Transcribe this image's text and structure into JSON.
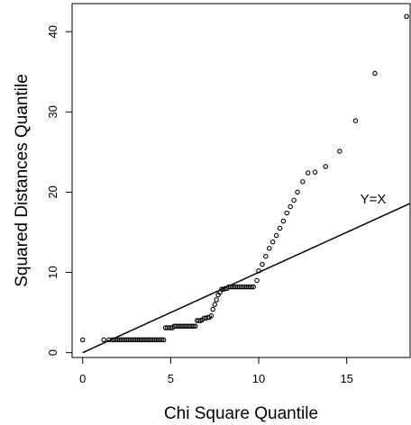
{
  "chart_data": {
    "type": "scatter",
    "title": "",
    "xlabel": "Chi Square Quantile",
    "ylabel": "Squared Distances Quantile",
    "xlim": [
      -0.6,
      18.6
    ],
    "ylim": [
      -0.6,
      43.5
    ],
    "xticks": [
      0,
      5,
      10,
      15
    ],
    "yticks": [
      0,
      10,
      20,
      30,
      40
    ],
    "grid": false,
    "series": [
      {
        "points": [
          [
            0.0,
            1.6
          ],
          [
            1.2,
            1.6
          ],
          [
            1.5,
            1.6
          ],
          [
            1.7,
            1.6
          ],
          [
            1.8,
            1.6
          ],
          [
            1.9,
            1.6
          ],
          [
            2.0,
            1.6
          ],
          [
            2.1,
            1.6
          ],
          [
            2.2,
            1.6
          ],
          [
            2.3,
            1.6
          ],
          [
            2.4,
            1.6
          ],
          [
            2.5,
            1.6
          ],
          [
            2.6,
            1.6
          ],
          [
            2.7,
            1.6
          ],
          [
            2.8,
            1.6
          ],
          [
            2.9,
            1.6
          ],
          [
            3.0,
            1.6
          ],
          [
            3.1,
            1.6
          ],
          [
            3.2,
            1.6
          ],
          [
            3.3,
            1.6
          ],
          [
            3.4,
            1.6
          ],
          [
            3.5,
            1.6
          ],
          [
            3.6,
            1.6
          ],
          [
            3.7,
            1.6
          ],
          [
            3.8,
            1.6
          ],
          [
            3.9,
            1.6
          ],
          [
            4.0,
            1.6
          ],
          [
            4.1,
            1.6
          ],
          [
            4.2,
            1.6
          ],
          [
            4.3,
            1.6
          ],
          [
            4.4,
            1.6
          ],
          [
            4.5,
            1.6
          ],
          [
            4.6,
            1.6
          ],
          [
            4.7,
            3.1
          ],
          [
            4.8,
            3.1
          ],
          [
            4.9,
            3.1
          ],
          [
            5.0,
            3.1
          ],
          [
            5.1,
            3.1
          ],
          [
            5.2,
            3.3
          ],
          [
            5.3,
            3.3
          ],
          [
            5.4,
            3.3
          ],
          [
            5.5,
            3.3
          ],
          [
            5.6,
            3.3
          ],
          [
            5.7,
            3.3
          ],
          [
            5.8,
            3.3
          ],
          [
            5.9,
            3.3
          ],
          [
            6.0,
            3.3
          ],
          [
            6.1,
            3.3
          ],
          [
            6.2,
            3.3
          ],
          [
            6.3,
            3.3
          ],
          [
            6.4,
            3.3
          ],
          [
            6.5,
            4.0
          ],
          [
            6.6,
            4.0
          ],
          [
            6.7,
            4.0
          ],
          [
            6.8,
            4.1
          ],
          [
            6.9,
            4.3
          ],
          [
            7.0,
            4.3
          ],
          [
            7.1,
            4.4
          ],
          [
            7.2,
            4.4
          ],
          [
            7.3,
            4.6
          ],
          [
            7.4,
            5.4
          ],
          [
            7.5,
            6.0
          ],
          [
            7.6,
            6.6
          ],
          [
            7.7,
            7.2
          ],
          [
            7.8,
            7.5
          ],
          [
            7.9,
            7.9
          ],
          [
            8.0,
            7.9
          ],
          [
            8.1,
            8.0
          ],
          [
            8.2,
            8.0
          ],
          [
            8.3,
            8.2
          ],
          [
            8.4,
            8.2
          ],
          [
            8.5,
            8.2
          ],
          [
            8.6,
            8.2
          ],
          [
            8.7,
            8.2
          ],
          [
            8.8,
            8.2
          ],
          [
            8.9,
            8.2
          ],
          [
            9.0,
            8.2
          ],
          [
            9.1,
            8.2
          ],
          [
            9.2,
            8.2
          ],
          [
            9.3,
            8.2
          ],
          [
            9.4,
            8.2
          ],
          [
            9.5,
            8.2
          ],
          [
            9.6,
            8.2
          ],
          [
            9.7,
            8.2
          ],
          [
            9.9,
            9.0
          ],
          [
            10.0,
            10.2
          ],
          [
            10.2,
            11.0
          ],
          [
            10.4,
            12.0
          ],
          [
            10.6,
            13.0
          ],
          [
            10.8,
            13.8
          ],
          [
            11.0,
            14.6
          ],
          [
            11.2,
            15.5
          ],
          [
            11.4,
            16.4
          ],
          [
            11.6,
            17.4
          ],
          [
            11.8,
            18.2
          ],
          [
            12.0,
            19.0
          ],
          [
            12.2,
            20.0
          ],
          [
            12.5,
            21.3
          ],
          [
            12.8,
            22.4
          ],
          [
            13.2,
            22.5
          ],
          [
            13.8,
            23.2
          ],
          [
            14.6,
            25.1
          ],
          [
            15.5,
            28.9
          ],
          [
            16.6,
            34.8
          ],
          [
            18.4,
            41.9
          ]
        ]
      }
    ],
    "reference_line": {
      "label": "Y=X",
      "slope": 1,
      "intercept": 0
    }
  }
}
